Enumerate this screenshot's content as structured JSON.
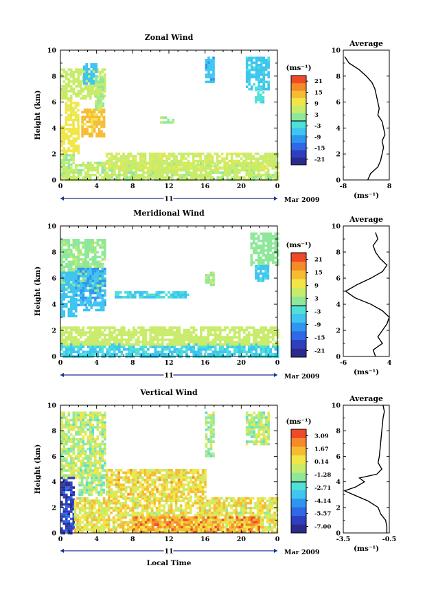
{
  "panels": [
    {
      "id": "zonal",
      "title": "Zonal Wind",
      "ylabel": "Height (km)",
      "date_label": "Mar 2009",
      "day_label": "11",
      "x_ticks": [
        "0",
        "4",
        "8",
        "12",
        "16",
        "20",
        "0"
      ],
      "y_ticks": [
        "0",
        "2",
        "4",
        "6",
        "8",
        "10"
      ],
      "colorbar": {
        "unit_label": "(ms⁻¹)",
        "tick_labels": [
          "21",
          "15",
          "9",
          "3",
          "-3",
          "-9",
          "-15",
          "-21"
        ],
        "range": [
          -24,
          24
        ]
      },
      "avg": {
        "title": "Average",
        "xlabel": "(ms⁻¹)",
        "x_ticks": [
          "-8",
          "8"
        ],
        "y_ticks": [
          "0",
          "2",
          "4",
          "6",
          "8",
          "10"
        ]
      }
    },
    {
      "id": "meridional",
      "title": "Meridional Wind",
      "ylabel": "Height (km)",
      "date_label": "Mar 2009",
      "day_label": "11",
      "x_ticks": [
        "0",
        "4",
        "8",
        "12",
        "16",
        "20",
        "0"
      ],
      "y_ticks": [
        "0",
        "2",
        "4",
        "6",
        "8",
        "10"
      ],
      "colorbar": {
        "unit_label": "(ms⁻¹)",
        "tick_labels": [
          "21",
          "15",
          "9",
          "3",
          "-3",
          "-9",
          "-15",
          "-21"
        ],
        "range": [
          -24,
          24
        ]
      },
      "avg": {
        "title": "Average",
        "xlabel": "(ms⁻¹)",
        "x_ticks": [
          "-6",
          "4"
        ],
        "y_ticks": [
          "0",
          "2",
          "4",
          "6",
          "8",
          "10"
        ]
      }
    },
    {
      "id": "vertical",
      "title": "Vertical Wind",
      "ylabel": "Height (km)",
      "xlabel": "Local Time",
      "date_label": "Mar 2009",
      "day_label": "11",
      "x_ticks": [
        "0",
        "4",
        "8",
        "12",
        "16",
        "20",
        "0"
      ],
      "y_ticks": [
        "0",
        "2",
        "4",
        "6",
        "8",
        "10"
      ],
      "colorbar": {
        "unit_label": "(ms⁻¹)",
        "tick_labels": [
          "3.09",
          "1.67",
          "0.14",
          "-1.28",
          "-2.71",
          "-4.14",
          "-5.57",
          "-7.00"
        ],
        "range": [
          -8.0,
          4.0
        ]
      },
      "avg": {
        "title": "Average",
        "xlabel": "(ms⁻¹)",
        "x_ticks": [
          "-3.5",
          "-0.5"
        ],
        "y_ticks": [
          "0",
          "2",
          "4",
          "6",
          "8",
          "10"
        ]
      }
    }
  ],
  "chart_data": [
    {
      "type": "heatmap",
      "title": "Zonal Wind",
      "xlabel": "",
      "ylabel": "Height (km)",
      "unit": "ms-1",
      "x_range_hours": [
        0,
        24
      ],
      "ylim": [
        0,
        10
      ],
      "color_range": [
        -24,
        24
      ],
      "patches": [
        {
          "t": [
            0,
            5
          ],
          "h": [
            6.2,
            8.6
          ],
          "v": 6
        },
        {
          "t": [
            0,
            2
          ],
          "h": [
            2.0,
            4.2
          ],
          "v": 10
        },
        {
          "t": [
            0,
            1.5
          ],
          "h": [
            0.3,
            2.0
          ],
          "v": 4
        },
        {
          "t": [
            0.5,
            2
          ],
          "h": [
            4.2,
            6.2
          ],
          "v": 9
        },
        {
          "t": [
            2.3,
            4.8
          ],
          "h": [
            3.3,
            5.5
          ],
          "v": 13
        },
        {
          "t": [
            2.5,
            4.0
          ],
          "h": [
            7.5,
            9.0
          ],
          "v": -6
        },
        {
          "t": [
            3.8,
            4.8
          ],
          "h": [
            5.5,
            8.0
          ],
          "v": 4
        },
        {
          "t": [
            0,
            24
          ],
          "h": [
            0.1,
            1.4
          ],
          "v": 5
        },
        {
          "t": [
            5,
            24
          ],
          "h": [
            0.9,
            2.1
          ],
          "v": 7
        },
        {
          "t": [
            16,
            17
          ],
          "h": [
            7.5,
            9.5
          ],
          "v": -7
        },
        {
          "t": [
            20.5,
            23
          ],
          "h": [
            7.0,
            9.5
          ],
          "v": -5
        },
        {
          "t": [
            21.5,
            22.5
          ],
          "h": [
            6.0,
            7.2
          ],
          "v": -3
        },
        {
          "t": [
            11,
            12.5
          ],
          "h": [
            4.5,
            4.9
          ],
          "v": 4
        }
      ],
      "average_profile": {
        "x_unit": "ms-1",
        "xlim": [
          -8,
          8
        ],
        "heights": [
          0.0,
          0.5,
          1.0,
          1.5,
          2.0,
          2.5,
          3.0,
          3.5,
          4.0,
          4.5,
          5.0,
          5.5,
          6.0,
          6.5,
          7.0,
          7.5,
          8.0,
          8.5,
          9.0,
          9.5
        ],
        "values": [
          0.5,
          1.5,
          4.0,
          5.0,
          5.5,
          6.0,
          5.5,
          6.5,
          6.0,
          5.5,
          4.0,
          4.5,
          4.0,
          3.5,
          3.0,
          2.0,
          0.0,
          -2.5,
          -6.0,
          -7.5
        ]
      }
    },
    {
      "type": "heatmap",
      "title": "Meridional Wind",
      "xlabel": "",
      "ylabel": "Height (km)",
      "unit": "ms-1",
      "x_range_hours": [
        0,
        24
      ],
      "ylim": [
        0,
        10
      ],
      "color_range": [
        -24,
        24
      ],
      "patches": [
        {
          "t": [
            0,
            5
          ],
          "h": [
            5.0,
            9.0
          ],
          "v": 3
        },
        {
          "t": [
            0,
            1.6
          ],
          "h": [
            3.0,
            6.5
          ],
          "v": -6
        },
        {
          "t": [
            1.6,
            4.8
          ],
          "h": [
            4.0,
            6.8
          ],
          "v": -8
        },
        {
          "t": [
            2.5,
            4.8
          ],
          "h": [
            3.5,
            4.2
          ],
          "v": -6
        },
        {
          "t": [
            0,
            24
          ],
          "h": [
            0.0,
            1.0
          ],
          "v": -4
        },
        {
          "t": [
            0,
            24
          ],
          "h": [
            1.0,
            2.3
          ],
          "v": 6
        },
        {
          "t": [
            21,
            24
          ],
          "h": [
            7.0,
            9.5
          ],
          "v": 2
        },
        {
          "t": [
            21.5,
            23
          ],
          "h": [
            5.8,
            7.0
          ],
          "v": -5
        },
        {
          "t": [
            6,
            14
          ],
          "h": [
            4.5,
            5.0
          ],
          "v": -4
        },
        {
          "t": [
            16,
            17
          ],
          "h": [
            5.5,
            6.5
          ],
          "v": 4
        }
      ],
      "average_profile": {
        "x_unit": "ms-1",
        "xlim": [
          -6,
          4
        ],
        "heights": [
          0.0,
          0.5,
          1.0,
          1.5,
          2.0,
          2.5,
          3.0,
          3.5,
          4.0,
          4.5,
          5.0,
          5.5,
          6.0,
          6.5,
          7.0,
          7.5,
          8.0,
          8.5,
          9.0,
          9.5
        ],
        "values": [
          1.0,
          0.5,
          2.5,
          1.5,
          2.5,
          3.5,
          4.0,
          2.5,
          0.0,
          -3.5,
          -5.5,
          -3.0,
          0.0,
          2.5,
          3.5,
          2.0,
          1.0,
          0.5,
          1.5,
          1.0
        ]
      }
    },
    {
      "type": "heatmap",
      "title": "Vertical Wind",
      "xlabel": "Local Time",
      "ylabel": "Height (km)",
      "unit": "ms-1",
      "x_range_hours": [
        0,
        24
      ],
      "ylim": [
        0,
        10
      ],
      "color_range": [
        -8.0,
        4.0
      ],
      "patches": [
        {
          "t": [
            0,
            5
          ],
          "h": [
            4.4,
            9.5
          ],
          "v": -0.7
        },
        {
          "t": [
            2,
            4.8
          ],
          "h": [
            3.0,
            4.4
          ],
          "v": -1.0
        },
        {
          "t": [
            0,
            1.5
          ],
          "h": [
            0.0,
            4.4
          ],
          "v": -6.5
        },
        {
          "t": [
            1.5,
            24
          ],
          "h": [
            0.0,
            2.8
          ],
          "v": 0.4
        },
        {
          "t": [
            5,
            16
          ],
          "h": [
            2.8,
            5.0
          ],
          "v": 0.6
        },
        {
          "t": [
            16,
            17
          ],
          "h": [
            6.0,
            9.5
          ],
          "v": -1.1
        },
        {
          "t": [
            20.5,
            23
          ],
          "h": [
            7.0,
            9.5
          ],
          "v": -0.9
        },
        {
          "t": [
            8,
            22
          ],
          "h": [
            0.0,
            1.3
          ],
          "v": 2.0
        }
      ],
      "average_profile": {
        "x_unit": "ms-1",
        "xlim": [
          -4.0,
          -0.3
        ],
        "heights": [
          0.0,
          0.5,
          1.0,
          1.5,
          2.0,
          2.5,
          3.0,
          3.3,
          3.6,
          4.0,
          4.3,
          4.6,
          5.0,
          5.5,
          6.0,
          7.0,
          8.0,
          9.0,
          9.5,
          10.0
        ],
        "values": [
          -0.5,
          -0.5,
          -0.6,
          -1.0,
          -1.2,
          -2.0,
          -3.2,
          -3.9,
          -3.0,
          -2.3,
          -2.7,
          -1.3,
          -0.9,
          -1.2,
          -1.1,
          -1.0,
          -0.9,
          -0.8,
          -0.7,
          -0.8
        ]
      }
    }
  ]
}
